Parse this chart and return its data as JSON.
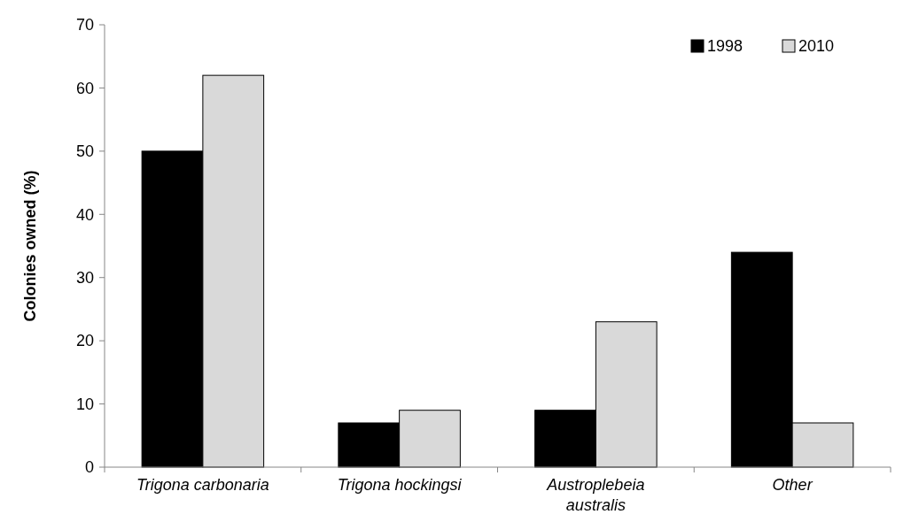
{
  "chart_data": {
    "type": "bar",
    "ylabel": "Colonies owned (%)",
    "categories": [
      "Trigona carbonaria",
      "Trigona hockingsi",
      "Austroplebeia australis",
      "Other"
    ],
    "series": [
      {
        "name": "1998",
        "color": "#000000",
        "values": [
          50,
          7,
          9,
          34
        ]
      },
      {
        "name": "2010",
        "color": "#d9d9d9",
        "values": [
          62,
          9,
          23,
          7
        ]
      }
    ],
    "ylim": [
      0,
      70
    ],
    "yticks": [
      0,
      10,
      20,
      30,
      40,
      50,
      60,
      70
    ],
    "grid": false,
    "legend": "top right"
  }
}
